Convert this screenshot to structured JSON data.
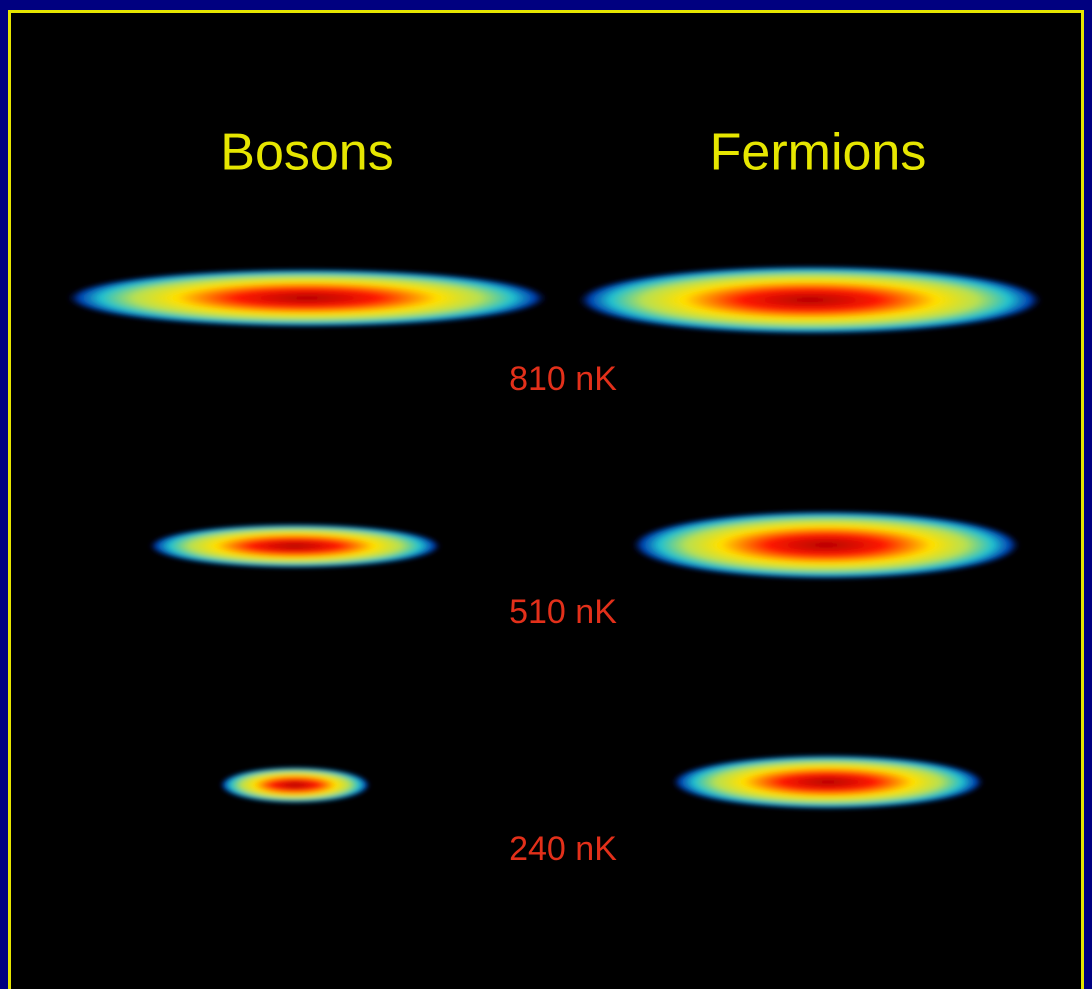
{
  "columns": [
    "Bosons",
    "Fermions"
  ],
  "temperatures": [
    "810 nK",
    "510 nK",
    "240 nK"
  ]
}
